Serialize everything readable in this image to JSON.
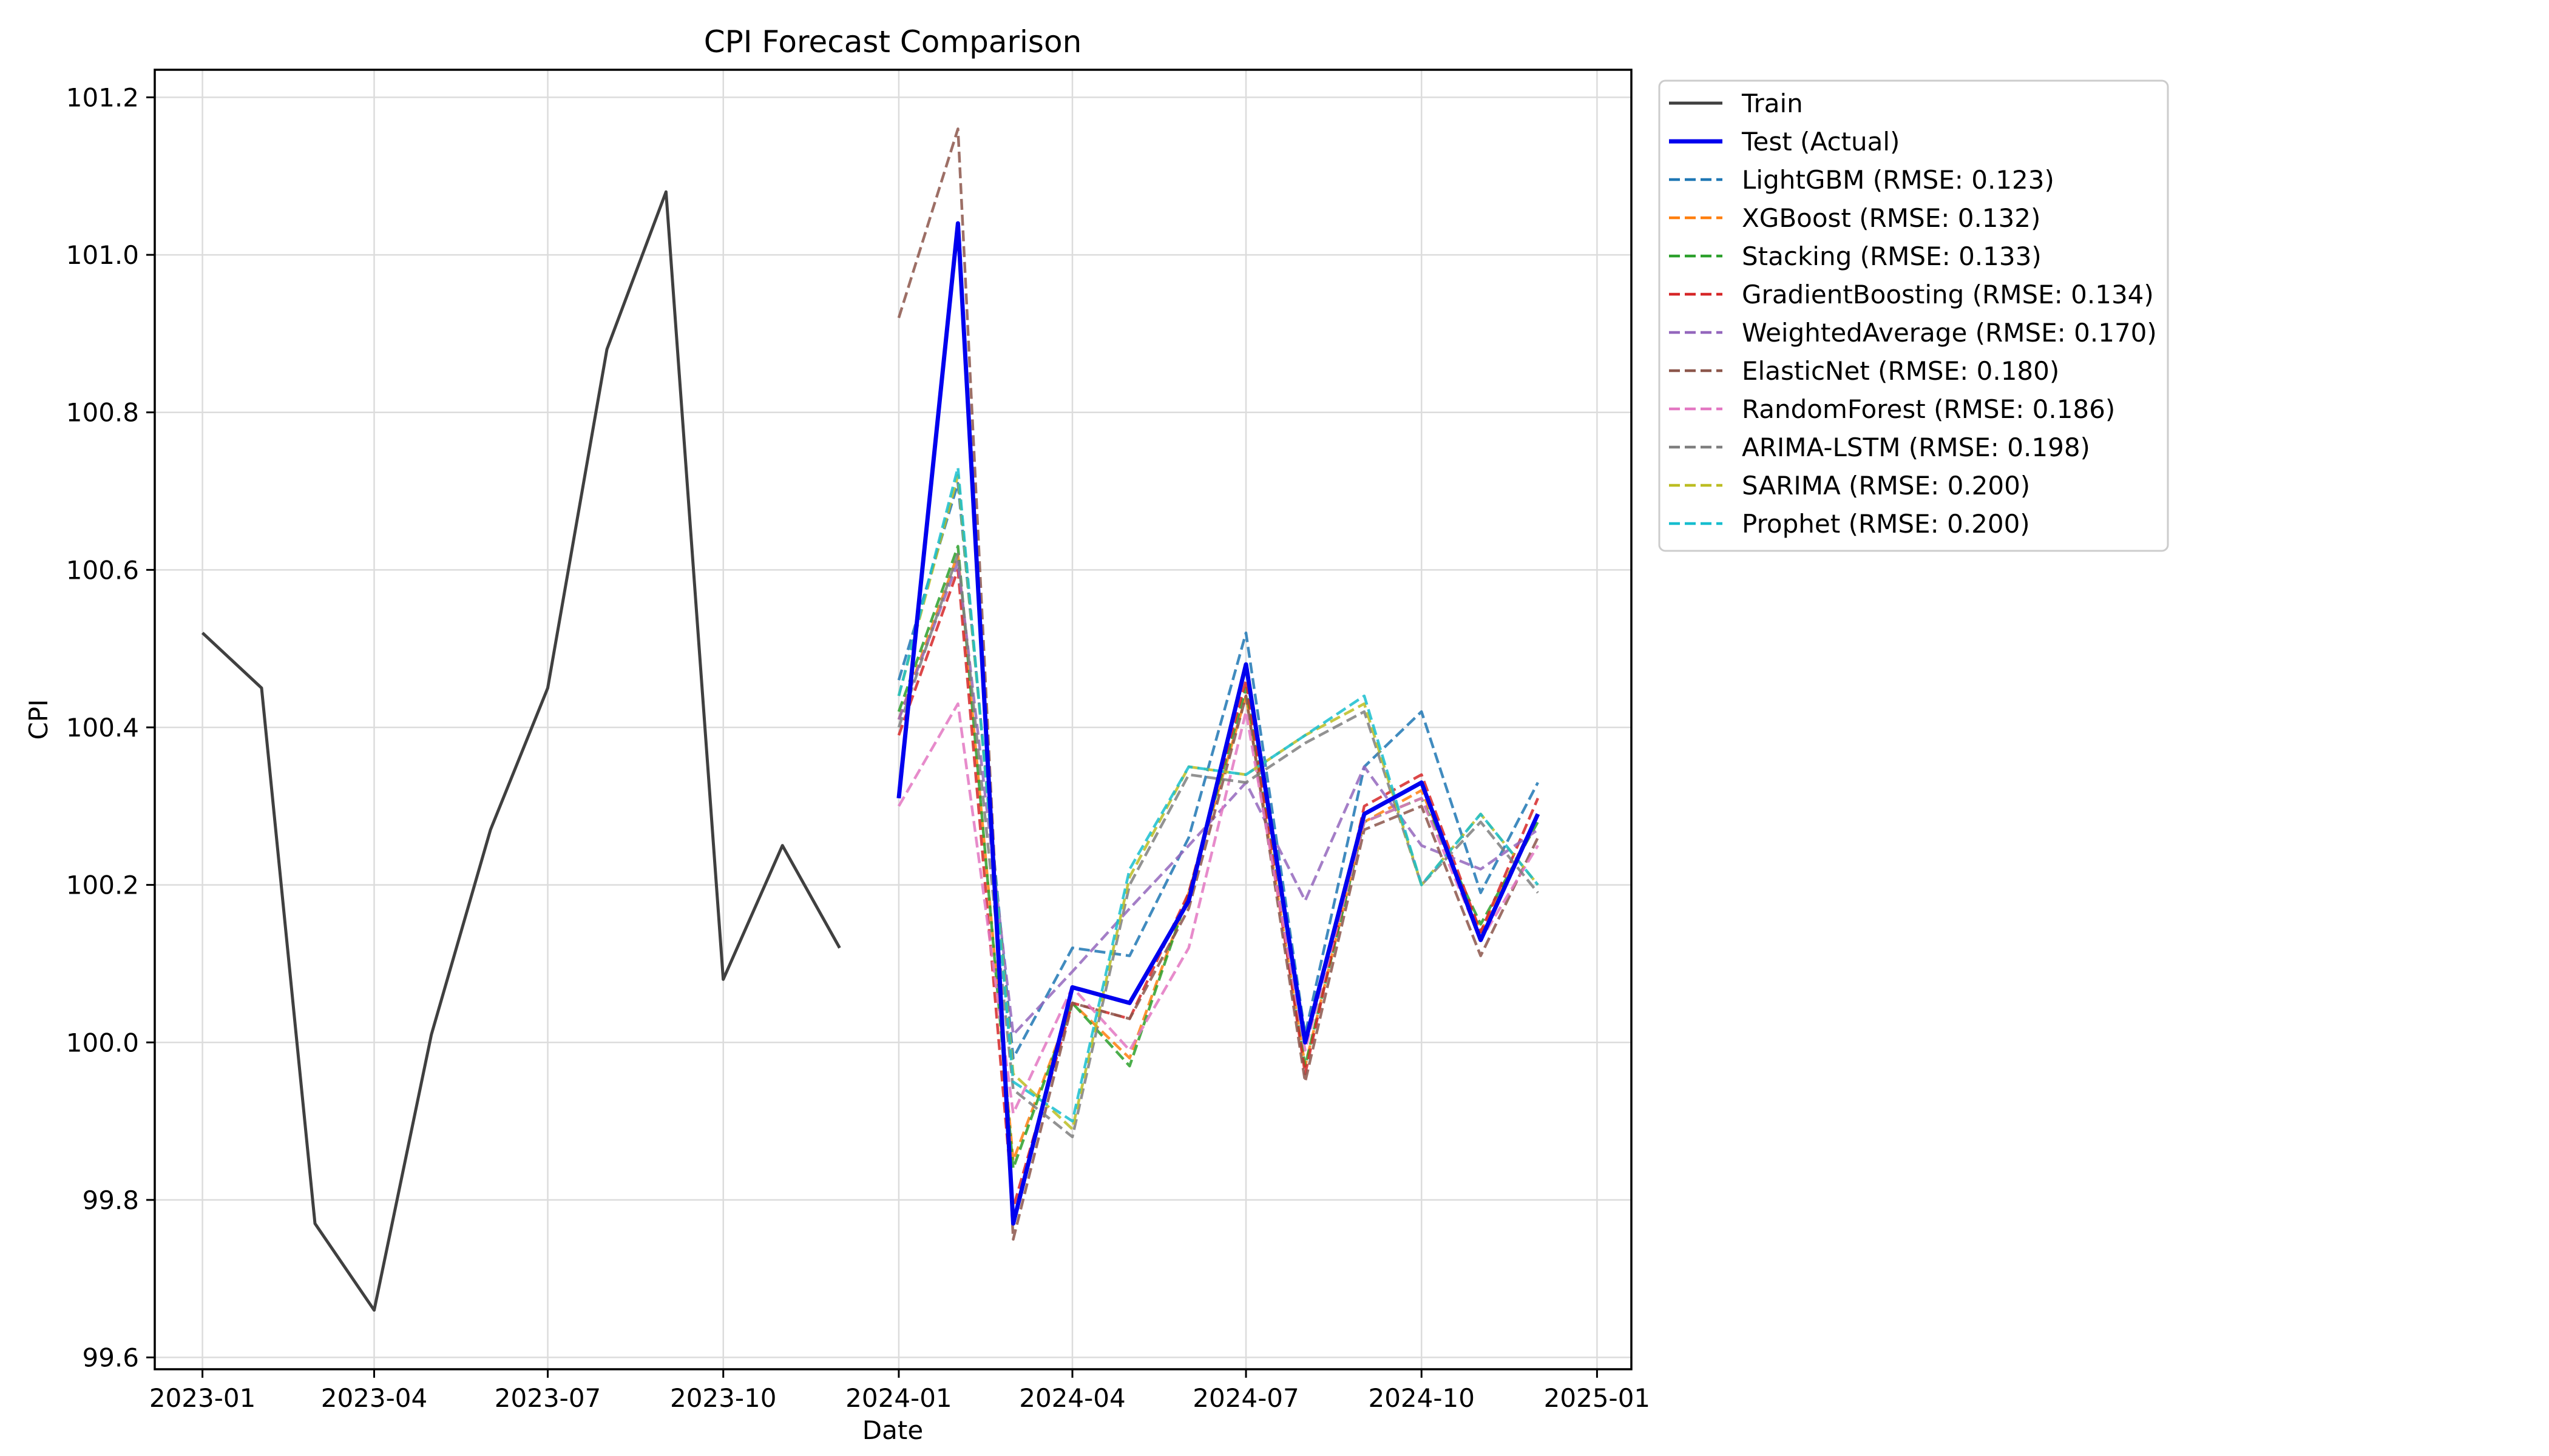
{
  "chart_data": {
    "type": "line",
    "title": "CPI Forecast Comparison",
    "xlabel": "Date",
    "ylabel": "CPI",
    "xlim": [
      "2022-12-07",
      "2025-01-19"
    ],
    "ylim": [
      99.585,
      101.235
    ],
    "x_ticks": [
      "2023-01",
      "2023-04",
      "2023-07",
      "2023-10",
      "2024-01",
      "2024-04",
      "2024-07",
      "2024-10",
      "2025-01"
    ],
    "y_ticks": [
      "99.6",
      "99.8",
      "100.0",
      "100.2",
      "100.4",
      "100.6",
      "100.8",
      "101.0",
      "101.2"
    ],
    "y_tick_values": [
      99.6,
      99.8,
      100.0,
      100.2,
      100.4,
      100.6,
      100.8,
      101.0,
      101.2
    ],
    "grid": true,
    "legend_position": "outside-top-right",
    "x": [
      "2023-01",
      "2023-02",
      "2023-03",
      "2023-04",
      "2023-05",
      "2023-06",
      "2023-07",
      "2023-08",
      "2023-09",
      "2023-10",
      "2023-11",
      "2023-12",
      "2024-01",
      "2024-02",
      "2024-03",
      "2024-04",
      "2024-05",
      "2024-06",
      "2024-07",
      "2024-08",
      "2024-09",
      "2024-10",
      "2024-11",
      "2024-12"
    ],
    "series": [
      {
        "name": "Train",
        "color": "#404040",
        "dashed": false,
        "width": 5,
        "values": [
          100.52,
          100.45,
          99.77,
          99.66,
          100.01,
          100.27,
          100.45,
          100.88,
          101.08,
          100.08,
          100.25,
          100.12,
          null,
          null,
          null,
          null,
          null,
          null,
          null,
          null,
          null,
          null,
          null,
          null
        ]
      },
      {
        "name": "Test (Actual)",
        "color": "#0000ee",
        "dashed": false,
        "width": 7,
        "values": [
          null,
          null,
          null,
          null,
          null,
          null,
          null,
          null,
          null,
          null,
          null,
          null,
          100.31,
          101.04,
          99.77,
          100.07,
          100.05,
          100.18,
          100.48,
          100.0,
          100.29,
          100.33,
          100.13,
          100.29
        ]
      },
      {
        "name": "LightGBM (RMSE: 0.123)",
        "color": "#1f77b4",
        "dashed": true,
        "width": 4.5,
        "values": [
          null,
          null,
          null,
          null,
          null,
          null,
          null,
          null,
          null,
          null,
          null,
          null,
          100.46,
          100.71,
          99.98,
          100.12,
          100.11,
          100.26,
          100.52,
          100.01,
          100.35,
          100.42,
          100.19,
          100.33
        ]
      },
      {
        "name": "XGBoost (RMSE: 0.132)",
        "color": "#ff7f0e",
        "dashed": true,
        "width": 4.5,
        "values": [
          null,
          null,
          null,
          null,
          null,
          null,
          null,
          null,
          null,
          null,
          null,
          null,
          100.41,
          100.62,
          99.85,
          100.05,
          99.98,
          100.19,
          100.44,
          99.97,
          100.28,
          100.32,
          100.14,
          100.29
        ]
      },
      {
        "name": "Stacking (RMSE: 0.133)",
        "color": "#2ca02c",
        "dashed": true,
        "width": 4.5,
        "values": [
          null,
          null,
          null,
          null,
          null,
          null,
          null,
          null,
          null,
          null,
          null,
          null,
          100.42,
          100.63,
          99.84,
          100.05,
          99.97,
          100.19,
          100.45,
          99.97,
          100.28,
          100.31,
          100.15,
          100.28
        ]
      },
      {
        "name": "GradientBoosting (RMSE: 0.134)",
        "color": "#d62728",
        "dashed": true,
        "width": 4.5,
        "values": [
          null,
          null,
          null,
          null,
          null,
          null,
          null,
          null,
          null,
          null,
          null,
          null,
          100.39,
          100.6,
          99.79,
          100.05,
          100.03,
          100.19,
          100.46,
          99.96,
          100.3,
          100.34,
          100.14,
          100.31
        ]
      },
      {
        "name": "WeightedAverage (RMSE: 0.170)",
        "color": "#9467bd",
        "dashed": true,
        "width": 4.5,
        "values": [
          null,
          null,
          null,
          null,
          null,
          null,
          null,
          null,
          null,
          null,
          null,
          null,
          100.41,
          100.61,
          100.01,
          100.09,
          100.17,
          100.25,
          100.33,
          100.18,
          100.35,
          100.25,
          100.22,
          100.27
        ]
      },
      {
        "name": "ElasticNet (RMSE: 0.180)",
        "color": "#8c564b",
        "dashed": true,
        "width": 4.5,
        "values": [
          null,
          null,
          null,
          null,
          null,
          null,
          null,
          null,
          null,
          null,
          null,
          null,
          100.92,
          101.16,
          99.75,
          100.05,
          100.03,
          100.17,
          100.44,
          99.95,
          100.27,
          100.3,
          100.11,
          100.26
        ]
      },
      {
        "name": "RandomForest (RMSE: 0.186)",
        "color": "#e377c2",
        "dashed": true,
        "width": 4.5,
        "values": [
          null,
          null,
          null,
          null,
          null,
          null,
          null,
          null,
          null,
          null,
          null,
          null,
          100.3,
          100.43,
          99.91,
          100.07,
          99.99,
          100.12,
          100.42,
          99.99,
          100.28,
          100.31,
          100.13,
          100.25
        ]
      },
      {
        "name": "ARIMA-LSTM (RMSE: 0.198)",
        "color": "#7f7f7f",
        "dashed": true,
        "width": 4.5,
        "values": [
          null,
          null,
          null,
          null,
          null,
          null,
          null,
          null,
          null,
          null,
          null,
          null,
          100.4,
          100.62,
          99.94,
          99.88,
          100.2,
          100.34,
          100.33,
          100.38,
          100.42,
          100.2,
          100.28,
          100.19
        ]
      },
      {
        "name": "SARIMA (RMSE: 0.200)",
        "color": "#bcbd22",
        "dashed": true,
        "width": 4.5,
        "values": [
          null,
          null,
          null,
          null,
          null,
          null,
          null,
          null,
          null,
          null,
          null,
          null,
          100.44,
          100.72,
          99.96,
          99.89,
          100.21,
          100.35,
          100.34,
          100.39,
          100.43,
          100.2,
          100.29,
          100.2
        ]
      },
      {
        "name": "Prophet (RMSE: 0.200)",
        "color": "#17becf",
        "dashed": true,
        "width": 4.5,
        "values": [
          null,
          null,
          null,
          null,
          null,
          null,
          null,
          null,
          null,
          null,
          null,
          null,
          100.44,
          100.73,
          99.95,
          99.9,
          100.22,
          100.35,
          100.34,
          100.39,
          100.44,
          100.2,
          100.29,
          100.2
        ]
      }
    ]
  }
}
